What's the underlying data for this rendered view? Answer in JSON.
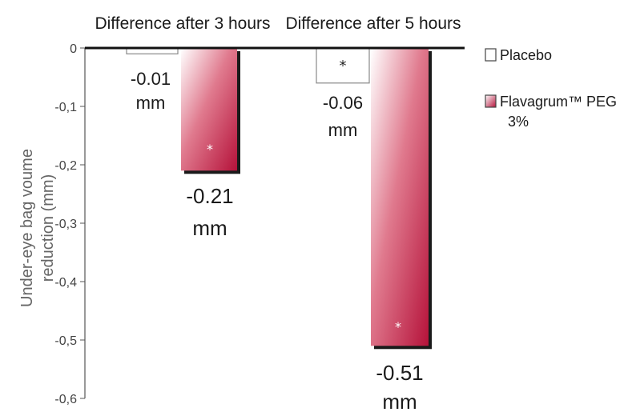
{
  "chart_data": {
    "type": "bar",
    "categories": [
      "Difference after 3 hours",
      "Difference after 5 hours"
    ],
    "series": [
      {
        "name": "Placebo",
        "values": [
          -0.01,
          -0.06
        ],
        "color": "#ffffff",
        "stroke": "#777777"
      },
      {
        "name": "Flavagrum™ PEG 3%",
        "values": [
          -0.21,
          -0.51
        ],
        "color_top": "#ffffff",
        "color_bottom": "#b5123a"
      }
    ],
    "data_labels": [
      [
        "-0.01",
        "mm"
      ],
      [
        "-0.06",
        "mm"
      ],
      [
        "-0.21",
        "mm"
      ],
      [
        "-0.51",
        "mm"
      ]
    ],
    "significance_marks": [
      {
        "series": 0,
        "category": 1,
        "mark": "*"
      },
      {
        "series": 1,
        "category": 0,
        "mark": "*"
      },
      {
        "series": 1,
        "category": 1,
        "mark": "*"
      }
    ],
    "ylabel": [
      "Under-eye bag voume",
      "reduction (mm)"
    ],
    "ylim": [
      -0.6,
      0
    ],
    "yticks": [
      0,
      -0.1,
      -0.2,
      -0.3,
      -0.4,
      -0.5,
      -0.6
    ],
    "ytick_labels": [
      "0",
      "-0,1",
      "-0,2",
      "-0,3",
      "-0,4",
      "-0,5",
      "-0,6"
    ],
    "legend_position": "top-right",
    "legend": [
      "Placebo",
      "Flavagrum™ PEG",
      "3%"
    ],
    "grid": false
  }
}
